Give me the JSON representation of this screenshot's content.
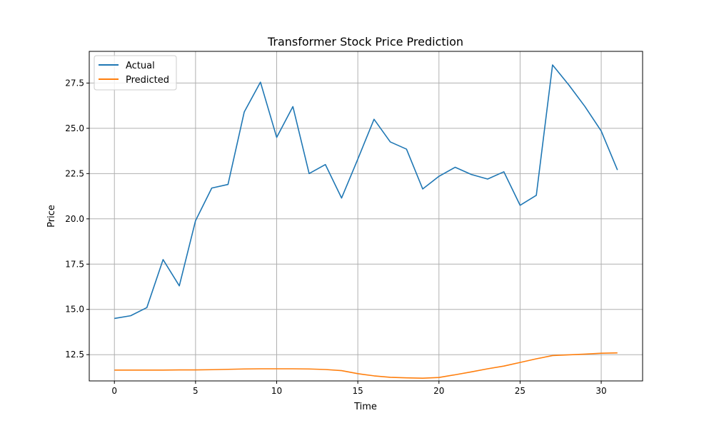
{
  "chart_data": {
    "type": "line",
    "title": "Transformer Stock Price Prediction",
    "xlabel": "Time",
    "ylabel": "Price",
    "xlim": [
      -1.55,
      32.55
    ],
    "ylim": [
      11.05,
      29.25
    ],
    "xticks": [
      0,
      5,
      10,
      15,
      20,
      25,
      30
    ],
    "yticks": [
      12.5,
      15.0,
      17.5,
      20.0,
      22.5,
      25.0,
      27.5
    ],
    "grid": true,
    "legend": "top-left",
    "x": [
      0,
      1,
      2,
      3,
      4,
      5,
      6,
      7,
      8,
      9,
      10,
      11,
      12,
      13,
      14,
      15,
      16,
      17,
      18,
      19,
      20,
      21,
      22,
      23,
      24,
      25,
      26,
      27,
      28,
      29,
      30,
      31
    ],
    "series": [
      {
        "name": "Actual",
        "color": "#1f77b4",
        "values": [
          14.5,
          14.65,
          15.1,
          17.75,
          16.3,
          19.9,
          21.7,
          21.9,
          25.9,
          27.55,
          24.5,
          26.2,
          22.5,
          23.0,
          21.15,
          23.3,
          25.5,
          24.25,
          23.85,
          21.65,
          22.35,
          22.85,
          22.45,
          22.2,
          22.6,
          20.75,
          21.3,
          28.5,
          27.4,
          26.2,
          24.85,
          22.7
        ]
      },
      {
        "name": "Predicted",
        "color": "#ff7f0e",
        "values": [
          11.65,
          11.65,
          11.65,
          11.65,
          11.66,
          11.66,
          11.67,
          11.69,
          11.71,
          11.72,
          11.72,
          11.72,
          11.71,
          11.68,
          11.62,
          11.45,
          11.33,
          11.25,
          11.22,
          11.2,
          11.24,
          11.39,
          11.55,
          11.72,
          11.87,
          12.07,
          12.27,
          12.45,
          12.49,
          12.53,
          12.58,
          12.6
        ]
      }
    ]
  }
}
